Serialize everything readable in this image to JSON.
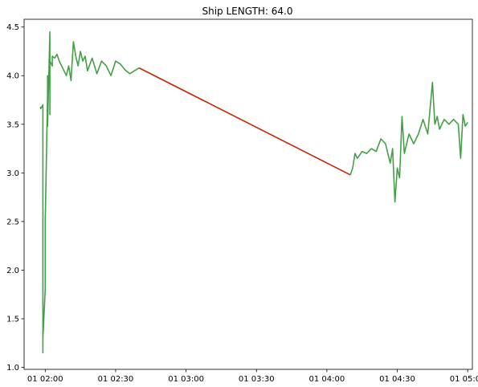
{
  "chart_data": {
    "type": "line",
    "title": "Ship LENGTH: 64.0",
    "xlabel": "",
    "ylabel": "",
    "x_axis": {
      "type": "time",
      "range": [
        "01 01:51",
        "01 05:02"
      ],
      "ticks": [
        "01 02:00",
        "01 02:30",
        "01 03:00",
        "01 03:30",
        "01 04:00",
        "01 04:30",
        "01 05:00"
      ]
    },
    "ylim": [
      0.98,
      4.58
    ],
    "y_ticks": [
      "1.0",
      "1.5",
      "2.0",
      "2.5",
      "3.0",
      "3.5",
      "4.0",
      "4.5"
    ],
    "grid": false,
    "legend": "none",
    "series": [
      {
        "color": "#43a047",
        "x": [
          "01 01:58",
          "01 01:58",
          "01 01:59",
          "01 01:59",
          "01 01:59",
          "01 01:59",
          "01 01:59",
          "01 01:59",
          "01 02:00",
          "01 02:00",
          "01 02:00",
          "01 02:00",
          "01 02:01",
          "01 02:01",
          "01 02:01",
          "01 02:01",
          "01 02:02",
          "01 02:02",
          "01 02:02",
          "01 02:02",
          "01 02:03",
          "01 02:03",
          "01 02:04",
          "01 02:05",
          "01 02:06",
          "01 02:07",
          "01 02:08",
          "01 02:09",
          "01 02:10",
          "01 02:11",
          "01 02:12",
          "01 02:13",
          "01 02:14",
          "01 02:15",
          "01 02:16",
          "01 02:17",
          "01 02:18",
          "01 02:20",
          "01 02:22",
          "01 02:24",
          "01 02:26",
          "01 02:28",
          "01 02:30",
          "01 02:32",
          "01 02:34",
          "01 02:36",
          "01 02:38",
          "01 02:40"
        ],
        "values": [
          3.68,
          3.66,
          3.7,
          3.6,
          1.4,
          1.15,
          1.55,
          1.3,
          1.8,
          2.4,
          2.55,
          2.5,
          3.8,
          3.5,
          4.0,
          3.48,
          4.45,
          3.6,
          4.1,
          4.15,
          4.1,
          4.2,
          4.18,
          4.22,
          4.15,
          4.1,
          4.05,
          4.0,
          4.1,
          3.95,
          4.35,
          4.2,
          4.1,
          4.25,
          4.15,
          4.2,
          4.05,
          4.18,
          4.02,
          4.15,
          4.1,
          4.0,
          4.15,
          4.12,
          4.06,
          4.02,
          4.05,
          4.08
        ]
      },
      {
        "color": "#cc2200",
        "x": [
          "01 02:40",
          "01 04:10"
        ],
        "values": [
          4.08,
          2.98
        ]
      },
      {
        "color": "#43a047",
        "x": [
          "01 04:10",
          "01 04:11",
          "01 04:12",
          "01 04:13",
          "01 04:15",
          "01 04:17",
          "01 04:19",
          "01 04:21",
          "01 04:23",
          "01 04:25",
          "01 04:27",
          "01 04:28",
          "01 04:29",
          "01 04:30",
          "01 04:31",
          "01 04:32",
          "01 04:33",
          "01 04:34",
          "01 04:35",
          "01 04:37",
          "01 04:39",
          "01 04:41",
          "01 04:43",
          "01 04:45",
          "01 04:46",
          "01 04:47",
          "01 04:48",
          "01 04:50",
          "01 04:52",
          "01 04:54",
          "01 04:56",
          "01 04:57",
          "01 04:58",
          "01 04:59",
          "01 05:00"
        ],
        "values": [
          2.98,
          3.05,
          3.2,
          3.15,
          3.22,
          3.2,
          3.25,
          3.22,
          3.35,
          3.3,
          3.1,
          3.25,
          2.7,
          3.05,
          2.95,
          3.58,
          3.2,
          3.3,
          3.4,
          3.3,
          3.4,
          3.55,
          3.4,
          3.93,
          3.5,
          3.58,
          3.45,
          3.55,
          3.5,
          3.55,
          3.5,
          3.15,
          3.6,
          3.48,
          3.52
        ]
      }
    ]
  }
}
